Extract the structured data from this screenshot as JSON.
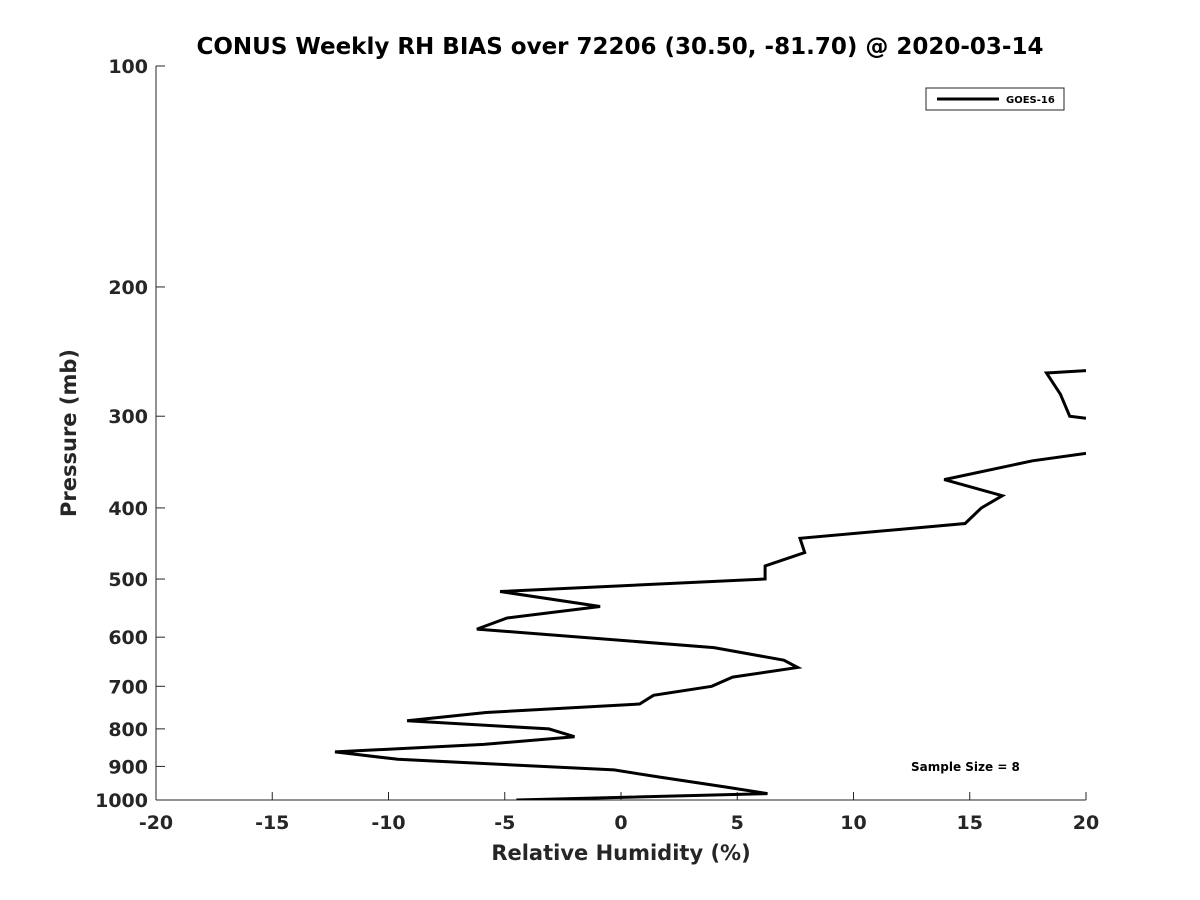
{
  "chart_data": {
    "type": "line",
    "title": "CONUS Weekly RH BIAS over 72206 (30.50, -81.70) @ 2020-03-14",
    "xlabel": "Relative Humidity (%)",
    "ylabel": "Pressure (mb)",
    "xlim": [
      -20,
      20
    ],
    "ylim": [
      1000,
      100
    ],
    "yscale": "log",
    "y_reversed": true,
    "grid": false,
    "legend_position": "top-right",
    "x_ticks": [
      -20,
      -15,
      -10,
      -5,
      0,
      5,
      10,
      15,
      20
    ],
    "x_tick_labels": [
      "-20",
      "-15",
      "-10",
      "-5",
      "0",
      "5",
      "10",
      "15",
      "20"
    ],
    "y_ticks": [
      100,
      200,
      300,
      400,
      500,
      600,
      700,
      800,
      900,
      1000
    ],
    "y_tick_labels": [
      "100",
      "200",
      "300",
      "400",
      "500",
      "600",
      "700",
      "800",
      "900",
      "1000"
    ],
    "annotation": "Sample Size = 8",
    "series": [
      {
        "name": "GOES-16",
        "color": "#000000",
        "segments": [
          [
            {
              "x": 20.0,
              "y": 260
            },
            {
              "x": 18.3,
              "y": 262
            },
            {
              "x": 18.9,
              "y": 280
            },
            {
              "x": 19.3,
              "y": 300
            },
            {
              "x": 20.0,
              "y": 302
            }
          ],
          [
            {
              "x": 20.0,
              "y": 337
            },
            {
              "x": 17.7,
              "y": 345
            },
            {
              "x": 13.9,
              "y": 366
            },
            {
              "x": 16.4,
              "y": 385
            },
            {
              "x": 15.5,
              "y": 400
            },
            {
              "x": 14.8,
              "y": 420
            },
            {
              "x": 7.7,
              "y": 440
            },
            {
              "x": 7.9,
              "y": 460
            },
            {
              "x": 6.2,
              "y": 480
            },
            {
              "x": 6.2,
              "y": 500
            },
            {
              "x": -5.2,
              "y": 520
            },
            {
              "x": -0.9,
              "y": 545
            },
            {
              "x": -4.9,
              "y": 565
            },
            {
              "x": -6.2,
              "y": 585
            },
            {
              "x": 4.0,
              "y": 620
            },
            {
              "x": 7.0,
              "y": 645
            },
            {
              "x": 7.6,
              "y": 660
            },
            {
              "x": 4.8,
              "y": 680
            },
            {
              "x": 3.9,
              "y": 700
            },
            {
              "x": 1.4,
              "y": 720
            },
            {
              "x": 0.8,
              "y": 740
            },
            {
              "x": -5.8,
              "y": 760
            },
            {
              "x": -9.2,
              "y": 780
            },
            {
              "x": -3.1,
              "y": 800
            },
            {
              "x": -2.0,
              "y": 820
            },
            {
              "x": -5.9,
              "y": 840
            },
            {
              "x": -12.3,
              "y": 860
            },
            {
              "x": -9.6,
              "y": 880
            },
            {
              "x": -0.3,
              "y": 910
            },
            {
              "x": 1.6,
              "y": 930
            },
            {
              "x": 4.5,
              "y": 960
            },
            {
              "x": 6.3,
              "y": 980
            },
            {
              "x": -4.5,
              "y": 1000
            }
          ]
        ]
      }
    ]
  }
}
